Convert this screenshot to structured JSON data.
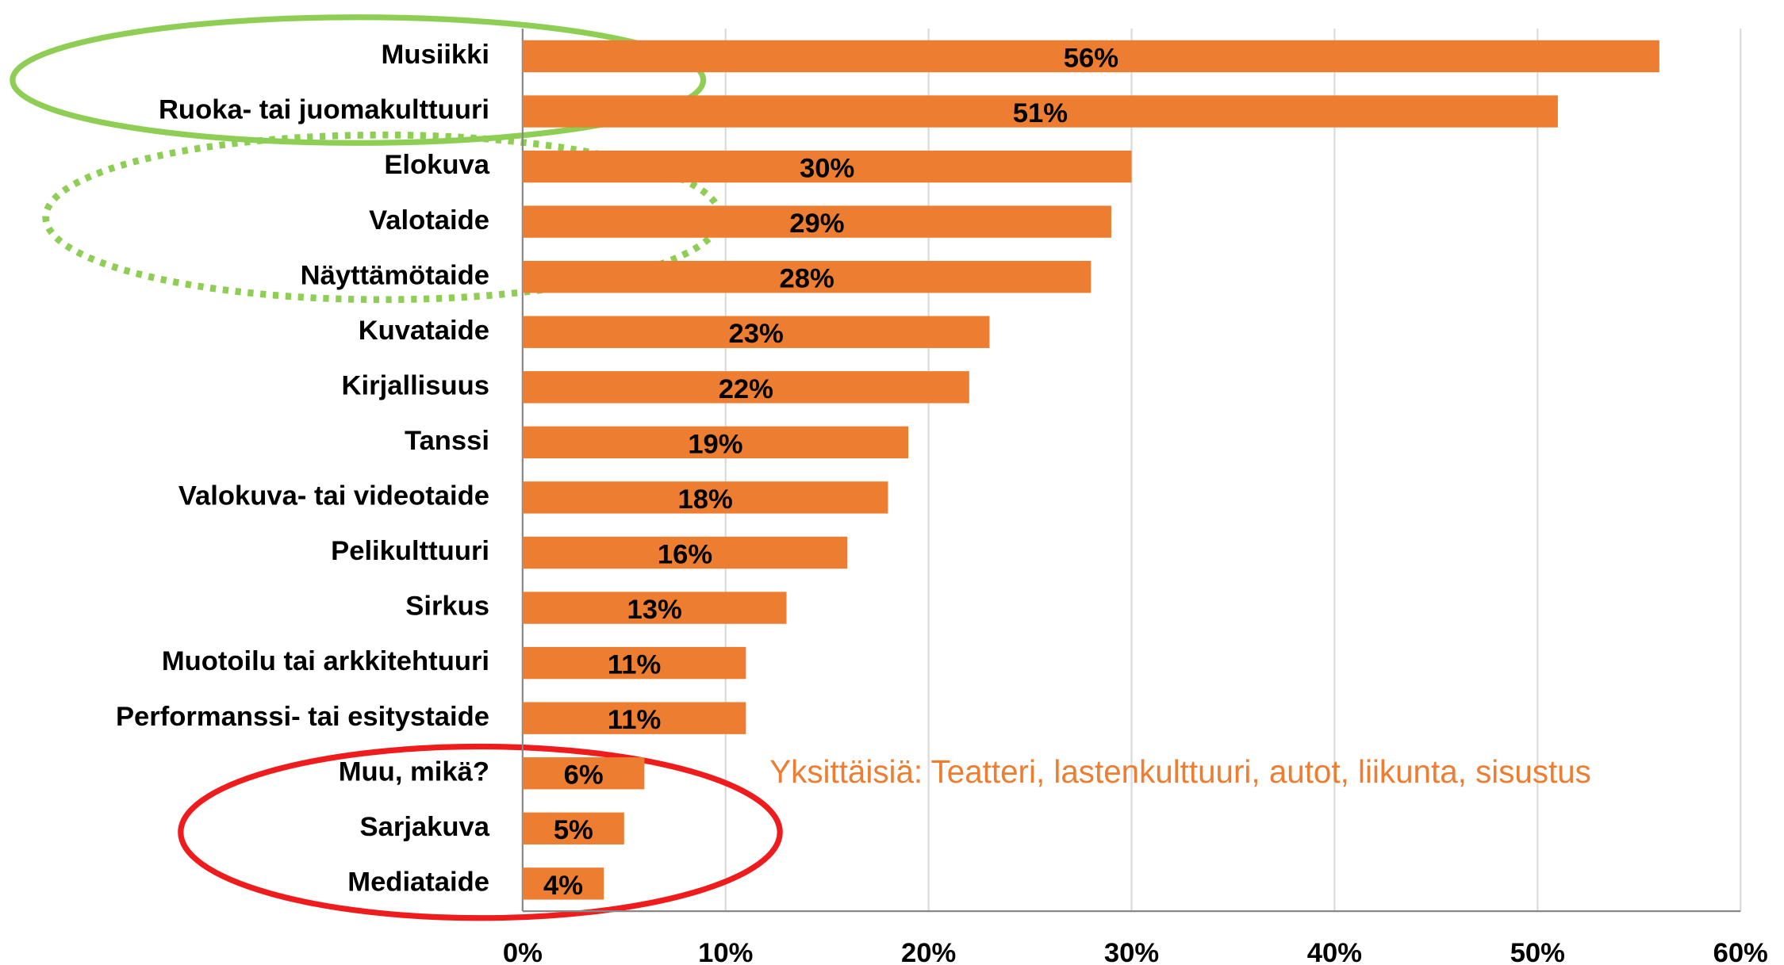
{
  "chart_data": {
    "type": "barh",
    "categories": [
      "Musiikki",
      "Ruoka- tai juomakulttuuri",
      "Elokuva",
      "Valotaide",
      "Näyttämötaide",
      "Kuvataide",
      "Kirjallisuus",
      "Tanssi",
      "Valokuva- tai videotaide",
      "Pelikulttuuri",
      "Sirkus",
      "Muotoilu tai arkkitehtuuri",
      "Performanssi- tai esitystaide",
      "Muu, mikä?",
      "Sarjakuva",
      "Mediataide"
    ],
    "values": [
      56,
      51,
      30,
      29,
      28,
      23,
      22,
      19,
      18,
      16,
      13,
      11,
      11,
      6,
      5,
      4
    ],
    "value_labels": [
      "56%",
      "51%",
      "30%",
      "29%",
      "28%",
      "23%",
      "22%",
      "19%",
      "18%",
      "16%",
      "13%",
      "11%",
      "11%",
      "6%",
      "5%",
      "4%"
    ],
    "color": "#ed7d31",
    "xlim": [
      0,
      60
    ],
    "xticks": [
      {
        "value": 0,
        "label": "0%"
      },
      {
        "value": 10,
        "label": "10%"
      },
      {
        "value": 20,
        "label": "20%"
      },
      {
        "value": 30,
        "label": "30%"
      },
      {
        "value": 40,
        "label": "40%"
      },
      {
        "value": 50,
        "label": "50%"
      },
      {
        "value": 60,
        "label": "60%"
      }
    ],
    "grid": true,
    "annotation": "Yksittäisiä: Teatteri, lastenkulttuuri, autot, liikunta, sisustus"
  }
}
